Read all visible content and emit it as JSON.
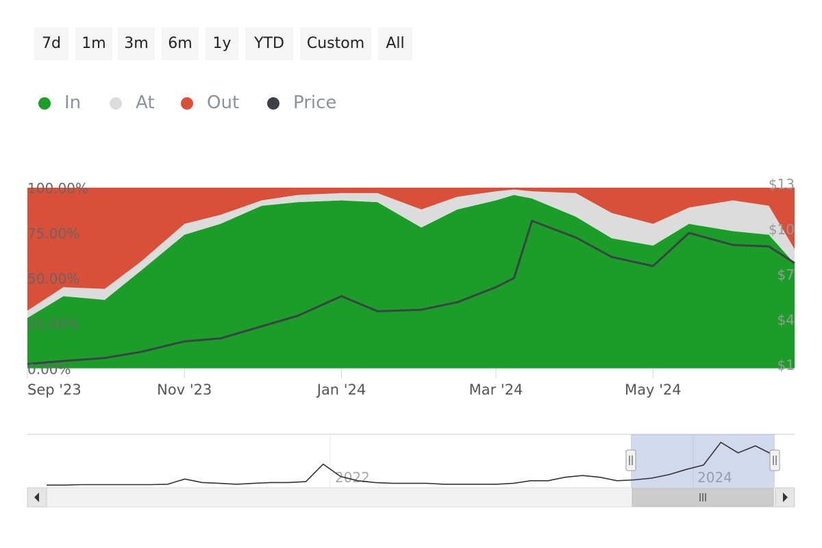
{
  "range_selector": {
    "buttons": [
      "7d",
      "1m",
      "3m",
      "6m",
      "1y",
      "YTD",
      "Custom",
      "All"
    ]
  },
  "legend": [
    {
      "label": "In",
      "color": "#1a9e27"
    },
    {
      "label": "At",
      "color": "#dcdcdc"
    },
    {
      "label": "Out",
      "color": "#d94f38"
    },
    {
      "label": "Price",
      "color": "#3c4148"
    }
  ],
  "chart_data": {
    "type": "area",
    "stacked": true,
    "title": "",
    "x_tick_labels": [
      "Sep '23",
      "Nov '23",
      "Jan '24",
      "Mar '24",
      "May '24"
    ],
    "y_left_tick_labels": [
      "0.00%",
      "25.00%",
      "50.00%",
      "75.00%",
      "100.00%"
    ],
    "y_right_tick_labels": [
      "$1",
      "$4",
      "$7",
      "$10",
      "$13"
    ],
    "ylim_left": [
      0,
      100
    ],
    "ylim_right": [
      1,
      13
    ],
    "x_range": [
      "2023-09-01",
      "2024-06-25"
    ],
    "x": [
      "2023-09-01",
      "2023-09-15",
      "2023-10-01",
      "2023-10-15",
      "2023-11-01",
      "2023-11-15",
      "2023-12-01",
      "2023-12-15",
      "2024-01-01",
      "2024-01-15",
      "2024-02-01",
      "2024-02-15",
      "2024-03-01",
      "2024-03-08",
      "2024-03-15",
      "2024-04-01",
      "2024-04-15",
      "2024-05-01",
      "2024-05-15",
      "2024-06-01",
      "2024-06-15",
      "2024-06-25"
    ],
    "series": [
      {
        "name": "In",
        "color": "#1a9e27",
        "values": [
          28,
          40,
          38,
          54,
          74,
          80,
          90,
          92,
          93,
          92,
          78,
          88,
          93,
          96,
          94,
          84,
          72,
          68,
          80,
          76,
          74,
          58
        ]
      },
      {
        "name": "At",
        "color": "#dcdcdc",
        "values": [
          4,
          5,
          6,
          5,
          6,
          5,
          3,
          4,
          4,
          5,
          10,
          7,
          5,
          3,
          4,
          13,
          14,
          12,
          9,
          17,
          16,
          8
        ]
      },
      {
        "name": "Out",
        "color": "#d94f38",
        "values": [
          68,
          55,
          56,
          41,
          20,
          15,
          7,
          4,
          3,
          3,
          12,
          5,
          2,
          1,
          2,
          3,
          14,
          20,
          11,
          7,
          10,
          34
        ]
      },
      {
        "name": "Price",
        "color": "#3c4148",
        "axis": "right",
        "values": [
          1.3,
          1.5,
          1.7,
          2.1,
          2.8,
          3.0,
          3.8,
          4.5,
          5.8,
          4.8,
          4.9,
          5.4,
          6.4,
          7.0,
          10.8,
          9.7,
          8.4,
          7.8,
          10.0,
          9.2,
          9.1,
          8.0
        ]
      }
    ],
    "grid": false,
    "legend_position": "top-left",
    "navigator": {
      "label": "2022",
      "label2": "2024",
      "selected_range": [
        "2023-09-01",
        "2024-06-25"
      ],
      "price": [
        0.3,
        0.3,
        0.35,
        0.35,
        0.35,
        0.35,
        0.35,
        0.4,
        1.0,
        0.6,
        0.5,
        0.4,
        0.5,
        0.6,
        0.6,
        0.7,
        2.7,
        1.3,
        0.8,
        0.6,
        0.5,
        0.5,
        0.5,
        0.4,
        0.4,
        0.4,
        0.4,
        0.5,
        0.8,
        0.8,
        1.2,
        1.4,
        1.2,
        0.8,
        0.9,
        1.1,
        1.5,
        2.1,
        2.6,
        5.2,
        4.0,
        4.8,
        3.8
      ]
    }
  }
}
